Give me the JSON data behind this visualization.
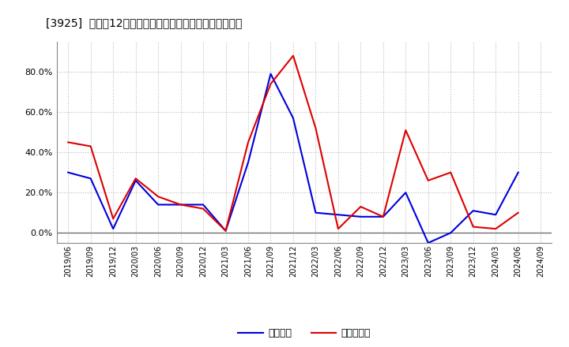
{
  "title": "[3925]  利益だ12か月移動合計の対前年同期増減率の推移",
  "legend_labels": [
    "経常利益",
    "当期純利益"
  ],
  "line_colors": [
    "#0000dd",
    "#dd0000"
  ],
  "background_color": "#ffffff",
  "plot_bg_color": "#ffffff",
  "grid_color": "#bbbbbb",
  "ylim": [
    -0.05,
    0.95
  ],
  "yticks": [
    0.0,
    0.2,
    0.4,
    0.6,
    0.8
  ],
  "dates": [
    "2019/06",
    "2019/09",
    "2019/12",
    "2020/03",
    "2020/06",
    "2020/09",
    "2020/12",
    "2021/03",
    "2021/06",
    "2021/09",
    "2021/12",
    "2022/03",
    "2022/06",
    "2022/09",
    "2022/12",
    "2023/03",
    "2023/06",
    "2023/09",
    "2023/12",
    "2024/03",
    "2024/06",
    "2024/09"
  ],
  "keijo_rieki": [
    0.3,
    0.27,
    0.02,
    0.26,
    0.14,
    0.14,
    0.14,
    0.01,
    0.35,
    0.79,
    0.57,
    0.1,
    0.09,
    0.08,
    0.08,
    0.2,
    -0.05,
    0.0,
    0.11,
    0.09,
    0.3,
    null
  ],
  "touki_junseki": [
    0.45,
    0.43,
    0.07,
    0.27,
    0.18,
    0.14,
    0.12,
    0.01,
    0.45,
    0.74,
    0.88,
    0.52,
    0.02,
    0.13,
    0.08,
    0.51,
    0.26,
    0.3,
    0.03,
    0.02,
    0.1,
    null
  ]
}
